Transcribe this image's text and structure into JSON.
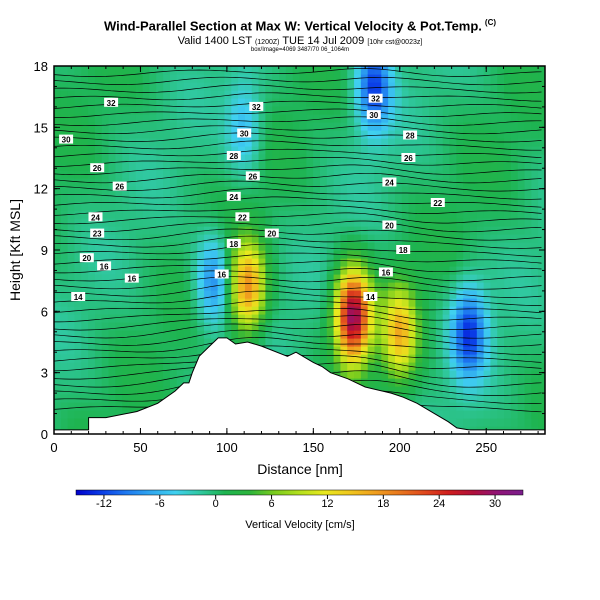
{
  "header": {
    "title": "Wind-Parallel Section at Max W: Vertical Velocity & Pot.Temp.",
    "title_mark": "(C)",
    "subtitle_main": "Valid 1400 LST",
    "subtitle_small1": "(1200Z)",
    "subtitle_mid": "TUE 14 Jul 2009",
    "subtitle_small2": "[10hr cst@0023z]",
    "tiny_line": "box/Image=4069 3487/70 06_1064m"
  },
  "colorbar": {
    "label": "Vertical Velocity [cm/s]",
    "ticks": [
      -12,
      -6,
      0,
      6,
      12,
      18,
      24,
      30
    ],
    "min": -15,
    "max": 33,
    "colors": [
      "#0000cc",
      "#0a3ce6",
      "#1e78f0",
      "#30a8f0",
      "#40d0f0",
      "#30c8a0",
      "#1eb450",
      "#2db43c",
      "#7acc1e",
      "#b4e01e",
      "#e8e81e",
      "#f0c81e",
      "#f0a01e",
      "#e8781e",
      "#e04a1e",
      "#d01e1e",
      "#b0103c",
      "#901478",
      "#7a1e8c"
    ]
  },
  "chart_data": {
    "type": "heatmap",
    "title": "Wind-Parallel Section at Max W: Vertical Velocity & Pot.Temp.",
    "xlabel": "Distance [nm]",
    "ylabel": "Height [Kft MSL]",
    "xlim": [
      0,
      284
    ],
    "ylim": [
      0,
      18
    ],
    "xticks": [
      0,
      50,
      100,
      150,
      200,
      250
    ],
    "yticks": [
      0,
      3,
      6,
      9,
      12,
      15,
      18
    ],
    "field": "vertical velocity [cm/s], filled; potential temperature contours (black lines)",
    "terrain": [
      [
        0,
        0.2
      ],
      [
        20,
        0.2
      ],
      [
        20,
        0.8
      ],
      [
        30,
        0.8
      ],
      [
        48,
        1.1
      ],
      [
        60,
        1.5
      ],
      [
        70,
        2.1
      ],
      [
        75,
        2.5
      ],
      [
        78,
        2.5
      ],
      [
        80,
        3.0
      ],
      [
        84,
        3.8
      ],
      [
        90,
        4.3
      ],
      [
        95,
        4.7
      ],
      [
        100,
        4.7
      ],
      [
        105,
        4.4
      ],
      [
        112,
        4.5
      ],
      [
        120,
        4.3
      ],
      [
        135,
        3.8
      ],
      [
        140,
        4.0
      ],
      [
        150,
        3.5
      ],
      [
        155,
        3.3
      ],
      [
        160,
        3.0
      ],
      [
        170,
        2.7
      ],
      [
        180,
        2.3
      ],
      [
        195,
        2.0
      ],
      [
        202,
        1.8
      ],
      [
        210,
        1.5
      ],
      [
        220,
        1.0
      ],
      [
        228,
        0.6
      ],
      [
        233,
        0.3
      ],
      [
        240,
        0.2
      ],
      [
        284,
        0.2
      ]
    ],
    "features": [
      {
        "name": "updraft",
        "x": 112,
        "y": 7.2,
        "w_max": 18
      },
      {
        "name": "updraft",
        "x": 173,
        "y": 5.8,
        "w_max": 30
      },
      {
        "name": "updraft",
        "x": 200,
        "y": 5.0,
        "w_max": 15
      },
      {
        "name": "downdraft",
        "x": 92,
        "y": 7.5,
        "w_min": -9
      },
      {
        "name": "downdraft",
        "x": 240,
        "y": 5.0,
        "w_min": -12
      },
      {
        "name": "downdraft",
        "x": 185,
        "y": 17.0,
        "w_min": -12
      },
      {
        "name": "downdraft",
        "x": 110,
        "y": 15.0,
        "w_min": -6
      }
    ],
    "contour_labels": [
      {
        "text": "32",
        "x": 33,
        "y": 16.2
      },
      {
        "text": "32",
        "x": 117,
        "y": 16.0
      },
      {
        "text": "32",
        "x": 186,
        "y": 16.4
      },
      {
        "text": "30",
        "x": 185,
        "y": 15.6
      },
      {
        "text": "30",
        "x": 110,
        "y": 14.7
      },
      {
        "text": "30",
        "x": 7,
        "y": 14.4
      },
      {
        "text": "28",
        "x": 206,
        "y": 14.6
      },
      {
        "text": "28",
        "x": 104,
        "y": 13.6
      },
      {
        "text": "26",
        "x": 205,
        "y": 13.5
      },
      {
        "text": "26",
        "x": 25,
        "y": 13.0
      },
      {
        "text": "26",
        "x": 115,
        "y": 12.6
      },
      {
        "text": "26",
        "x": 38,
        "y": 12.1
      },
      {
        "text": "24",
        "x": 194,
        "y": 12.3
      },
      {
        "text": "24",
        "x": 104,
        "y": 11.6
      },
      {
        "text": "22",
        "x": 222,
        "y": 11.3
      },
      {
        "text": "24",
        "x": 24,
        "y": 10.6
      },
      {
        "text": "22",
        "x": 109,
        "y": 10.6
      },
      {
        "text": "20",
        "x": 194,
        "y": 10.2
      },
      {
        "text": "23",
        "x": 25,
        "y": 9.8
      },
      {
        "text": "20",
        "x": 126,
        "y": 9.8
      },
      {
        "text": "18",
        "x": 104,
        "y": 9.3
      },
      {
        "text": "18",
        "x": 202,
        "y": 9.0
      },
      {
        "text": "20",
        "x": 19,
        "y": 8.6
      },
      {
        "text": "16",
        "x": 29,
        "y": 8.2
      },
      {
        "text": "16",
        "x": 192,
        "y": 7.9
      },
      {
        "text": "16",
        "x": 97,
        "y": 7.8
      },
      {
        "text": "16",
        "x": 45,
        "y": 7.6
      },
      {
        "text": "14",
        "x": 14,
        "y": 6.7
      },
      {
        "text": "14",
        "x": 183,
        "y": 6.7
      }
    ]
  }
}
